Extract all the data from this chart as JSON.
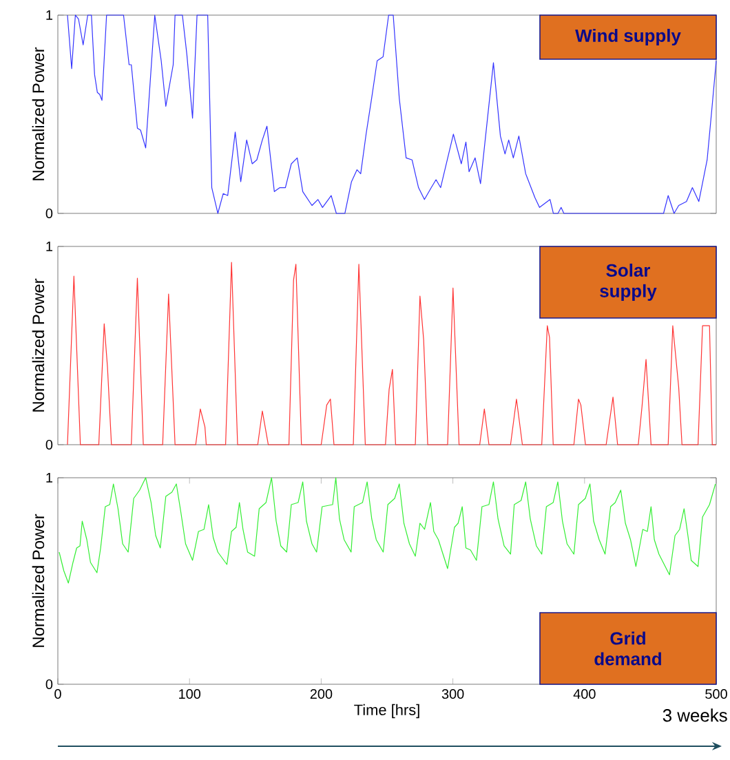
{
  "chart_data": [
    {
      "type": "line",
      "ylabel": "Normalized Power",
      "xlim": [
        0,
        500
      ],
      "ylim": [
        0,
        1
      ],
      "yticks": [
        0,
        1
      ],
      "tick_labels": "y",
      "marker": "none",
      "line_style": "solid",
      "annotations": [
        "Wind supply"
      ],
      "series": [
        {
          "color": "#3333ff",
          "x": [
            7.3,
            10.5,
            13.3,
            15.7,
            19.2,
            22.7,
            25.5,
            27.9,
            30,
            31.8,
            33.5,
            37,
            49.9,
            54.1,
            55.8,
            60.4,
            62.8,
            66.7,
            73.6,
            78.5,
            82,
            87.6,
            89,
            94.6,
            98,
            102.3,
            105.7,
            113.8,
            116.9,
            121.5,
            125.6,
            129,
            134.7,
            138.9,
            143.4,
            147.6,
            151.1,
            155.3,
            158.8,
            164.4,
            168.6,
            172.8,
            177.3,
            181.8,
            186,
            193,
            197.5,
            201,
            207.6,
            211.5,
            218,
            223,
            227.2,
            230,
            234.1,
            238.3,
            242.5,
            247,
            251.2,
            254.7,
            259.3,
            264.5,
            269,
            273.9,
            278.4,
            283.6,
            287.2,
            290.7,
            300.4,
            306.4,
            309.9,
            312.3,
            316.9,
            321,
            330.8,
            336.1,
            339.6,
            342.4,
            345.9,
            350.1,
            355.3,
            362.3,
            365.8,
            373.8,
            376.3,
            379.8,
            382.2,
            384.3,
            460,
            463.5,
            468,
            471.5,
            477.4,
            481.9,
            486.8,
            493.1,
            496.6,
            500
          ],
          "values": [
            1,
            0.73,
            1,
            0.98,
            0.85,
            1,
            1,
            0.7,
            0.61,
            0.6,
            0.57,
            1,
            1,
            0.75,
            0.75,
            0.43,
            0.42,
            0.33,
            1,
            0.77,
            0.54,
            0.75,
            1,
            1,
            0.8,
            0.48,
            1,
            1,
            0.13,
            0,
            0.1,
            0.09,
            0.41,
            0.16,
            0.37,
            0.25,
            0.27,
            0.37,
            0.44,
            0.11,
            0.13,
            0.13,
            0.25,
            0.28,
            0.11,
            0.04,
            0.07,
            0.03,
            0.09,
            0,
            0,
            0.16,
            0.22,
            0.2,
            0.4,
            0.58,
            0.77,
            0.79,
            1,
            1,
            0.58,
            0.28,
            0.27,
            0.13,
            0.07,
            0.13,
            0.17,
            0.13,
            0.4,
            0.25,
            0.36,
            0.21,
            0.28,
            0.15,
            0.76,
            0.39,
            0.3,
            0.37,
            0.28,
            0.39,
            0.2,
            0.08,
            0.03,
            0.07,
            0,
            0,
            0.03,
            0,
            0,
            0.09,
            0,
            0.04,
            0.06,
            0.13,
            0.06,
            0.27,
            0.52,
            0.77
          ]
        }
      ]
    },
    {
      "type": "line",
      "ylabel": "Normalized Power",
      "xlim": [
        0,
        500
      ],
      "ylim": [
        0,
        1
      ],
      "yticks": [
        0,
        1
      ],
      "tick_labels": "y",
      "marker": "none",
      "line_style": "solid",
      "annotations": [
        "Solar supply"
      ],
      "series": [
        {
          "color": "#ff3333",
          "x": [
            7.3,
            12.2,
            17.1,
            31.1,
            35.2,
            37.7,
            40.7,
            55.8,
            60.4,
            64.9,
            79.6,
            84.1,
            89,
            104.7,
            108.2,
            111.7,
            112.7,
            127.4,
            131.9,
            136.5,
            151.8,
            155.3,
            159.8,
            175.5,
            179,
            180.8,
            185,
            200,
            204.2,
            207,
            209.7,
            224.4,
            228.6,
            233.5,
            248.8,
            251.6,
            254.1,
            256.5,
            271.5,
            275,
            277.8,
            280.9,
            296,
            300.1,
            304.7,
            320.4,
            323.9,
            327.4,
            343.8,
            348.3,
            352.8,
            367.5,
            371.7,
            373.4,
            376.2,
            391.9,
            395.4,
            397.2,
            400.7,
            416.4,
            421.6,
            425.1,
            440.8,
            443.6,
            446.7,
            450.5,
            463.5,
            467,
            471.5,
            474,
            486.2,
            489.6,
            494.9,
            497,
            500
          ],
          "values": [
            0,
            0.85,
            0,
            0,
            0.61,
            0.39,
            0,
            0,
            0.84,
            0,
            0,
            0.76,
            0,
            0,
            0.18,
            0.09,
            0,
            0,
            0.92,
            0,
            0,
            0.17,
            0,
            0,
            0.83,
            0.91,
            0,
            0,
            0.2,
            0.23,
            0,
            0,
            0.91,
            0,
            0,
            0.28,
            0.38,
            0,
            0,
            0.75,
            0.53,
            0,
            0,
            0.79,
            0,
            0,
            0.18,
            0,
            0,
            0.23,
            0,
            0,
            0.6,
            0.54,
            0,
            0,
            0.23,
            0.2,
            0,
            0,
            0.24,
            0,
            0,
            0.19,
            0.43,
            0,
            0,
            0.6,
            0.29,
            0,
            0,
            0.6,
            0.6,
            0,
            0
          ]
        }
      ]
    },
    {
      "type": "line",
      "ylabel": "Normalized Power",
      "xlabel": "Time [hrs]",
      "xlim": [
        0,
        500
      ],
      "ylim": [
        0,
        1
      ],
      "xticks": [
        0,
        100,
        200,
        300,
        400,
        500
      ],
      "yticks": [
        0,
        1
      ],
      "marker": "none",
      "line_style": "solid",
      "annotations": [
        "Grid demand",
        "3 weeks"
      ],
      "series": [
        {
          "color": "#33ee33",
          "x": [
            1,
            4.5,
            8,
            11.5,
            14.3,
            16.8,
            18.5,
            22,
            24.8,
            29.7,
            32.5,
            36,
            39.4,
            42.2,
            45.7,
            49.2,
            53.4,
            57.6,
            62.1,
            66.7,
            70.8,
            74.3,
            77.8,
            82,
            86.6,
            90,
            93.5,
            97,
            102.3,
            106.8,
            111,
            114.5,
            118,
            121.5,
            128.4,
            131.9,
            135.4,
            137.9,
            140.6,
            144.1,
            149.4,
            152.9,
            158.1,
            162.3,
            165.8,
            169.3,
            173.8,
            177.3,
            182.5,
            186,
            188.8,
            193,
            196.5,
            200.7,
            208.7,
            211.1,
            213.9,
            217.4,
            222.7,
            225.1,
            231.4,
            234.9,
            238.4,
            241.8,
            247.1,
            250.6,
            255.8,
            259.3,
            262.8,
            267,
            271.5,
            275,
            278.5,
            283,
            285.5,
            289,
            296,
            301.2,
            304,
            307.1,
            309.9,
            313.4,
            317.9,
            322.1,
            327.4,
            330.8,
            334.3,
            338.9,
            343.8,
            346.6,
            351.8,
            355.3,
            358.8,
            363.4,
            367.5,
            371,
            376.2,
            379.7,
            383.2,
            386.7,
            391.9,
            395.4,
            400.6,
            404.1,
            406.9,
            411.1,
            415.6,
            419.8,
            423.3,
            427.5,
            431,
            434.9,
            439,
            444.2,
            447.7,
            450.5,
            453,
            456.5,
            464.5,
            468.7,
            472.2,
            475.6,
            478.5,
            481,
            486.2,
            489.6,
            494.9,
            499.4
          ],
          "values": [
            0.64,
            0.55,
            0.49,
            0.59,
            0.66,
            0.67,
            0.79,
            0.7,
            0.59,
            0.54,
            0.66,
            0.86,
            0.87,
            0.97,
            0.85,
            0.68,
            0.64,
            0.9,
            0.94,
            1,
            0.88,
            0.72,
            0.66,
            0.91,
            0.93,
            0.97,
            0.83,
            0.68,
            0.6,
            0.74,
            0.75,
            0.87,
            0.71,
            0.64,
            0.58,
            0.74,
            0.76,
            0.88,
            0.75,
            0.64,
            0.62,
            0.85,
            0.88,
            1,
            0.79,
            0.67,
            0.64,
            0.87,
            0.88,
            0.98,
            0.79,
            0.68,
            0.64,
            0.86,
            0.87,
            1,
            0.8,
            0.7,
            0.64,
            0.86,
            0.88,
            0.98,
            0.8,
            0.7,
            0.64,
            0.87,
            0.9,
            0.97,
            0.78,
            0.68,
            0.62,
            0.78,
            0.75,
            0.88,
            0.74,
            0.7,
            0.56,
            0.76,
            0.78,
            0.86,
            0.66,
            0.65,
            0.6,
            0.86,
            0.87,
            0.98,
            0.8,
            0.67,
            0.63,
            0.87,
            0.89,
            0.98,
            0.8,
            0.67,
            0.63,
            0.86,
            0.88,
            0.98,
            0.79,
            0.68,
            0.63,
            0.87,
            0.9,
            0.97,
            0.79,
            0.7,
            0.63,
            0.86,
            0.88,
            0.94,
            0.78,
            0.7,
            0.57,
            0.75,
            0.74,
            0.86,
            0.7,
            0.63,
            0.53,
            0.72,
            0.75,
            0.85,
            0.72,
            0.6,
            0.57,
            0.81,
            0.87,
            0.97
          ]
        }
      ]
    }
  ]
}
